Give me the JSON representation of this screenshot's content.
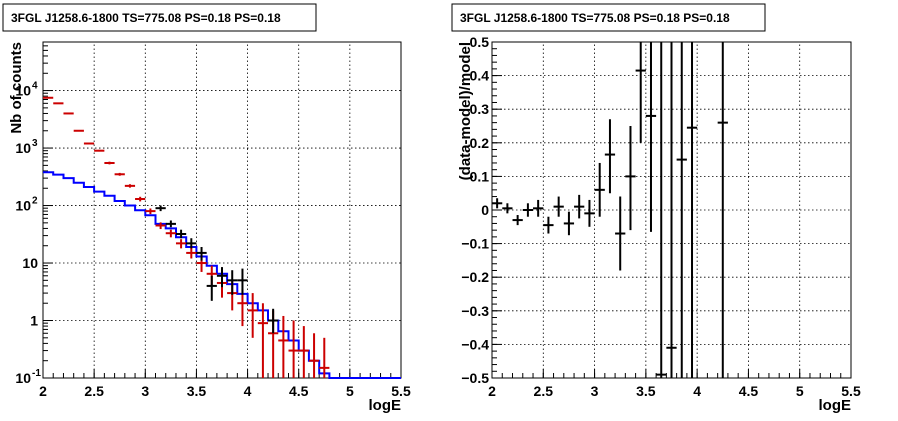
{
  "chart_data": [
    {
      "type": "line",
      "title": "3FGL J1258.6-1800 TS=775.08 PS=0.18 PS=0.18",
      "xlabel": "logE",
      "ylabel": "Nb of counts",
      "xlim": [
        2,
        5.5
      ],
      "ylim": [
        0.1,
        70000
      ],
      "yscale": "log",
      "grid": true,
      "xticks": [
        "2",
        "2.5",
        "3",
        "3.5",
        "4",
        "4.5",
        "5",
        "5.5"
      ],
      "yticks": [
        {
          "value": 0.1,
          "label": "10",
          "sup": "-1"
        },
        {
          "value": 1,
          "label": "1",
          "sup": ""
        },
        {
          "value": 10,
          "label": "10",
          "sup": ""
        },
        {
          "value": 100,
          "label": "10",
          "sup": "2"
        },
        {
          "value": 1000,
          "label": "10",
          "sup": "3"
        },
        {
          "value": 10000,
          "label": "10",
          "sup": "4"
        }
      ],
      "series": [
        {
          "kind": "model-histogram",
          "color": "#0000ff",
          "bin_width": 0.1,
          "x": [
            2.05,
            2.15,
            2.25,
            2.35,
            2.45,
            2.55,
            2.65,
            2.75,
            2.85,
            2.95,
            3.05,
            3.15,
            3.25,
            3.35,
            3.45,
            3.55,
            3.65,
            3.75,
            3.85,
            3.95,
            4.05,
            4.15,
            4.25,
            4.35,
            4.45,
            4.55,
            4.65,
            4.75,
            4.85,
            4.95,
            5.05,
            5.15,
            5.25,
            5.35,
            5.45
          ],
          "y": [
            380,
            345,
            300,
            250,
            210,
            175,
            148,
            120,
            100,
            83,
            68,
            48,
            40,
            28,
            19,
            13,
            9,
            6.5,
            4.3,
            2.9,
            2.0,
            1.5,
            1.0,
            0.65,
            0.45,
            0.3,
            0.2,
            0.12,
            0.1,
            0.1,
            0.1,
            0.1,
            0.1,
            0.1,
            0.1
          ]
        },
        {
          "kind": "model-points",
          "color": "#cc0000",
          "x": [
            2.05,
            2.15,
            2.25,
            2.35,
            2.45,
            2.55,
            2.65,
            2.75,
            2.85,
            2.95,
            3.05,
            3.15,
            3.25,
            3.35,
            3.45,
            3.55,
            3.65,
            3.75,
            3.85,
            3.95,
            4.05,
            4.15,
            4.25,
            4.35,
            4.45,
            4.55,
            4.65,
            4.75
          ],
          "y": [
            7500,
            6000,
            4000,
            2000,
            1200,
            900,
            550,
            350,
            220,
            130,
            80,
            45,
            33,
            22,
            15,
            10,
            6.5,
            4.5,
            3.0,
            2.0,
            1.5,
            0.9,
            0.6,
            0.45,
            0.3,
            0.3,
            0.2,
            0.15
          ],
          "ylo": [
            7300,
            5850,
            3900,
            1950,
            1160,
            870,
            520,
            330,
            205,
            118,
            71,
            39,
            28,
            18,
            12,
            7,
            4,
            2.5,
            1.5,
            0.8,
            0.5,
            0.1,
            0.1,
            0.1,
            0.1,
            0.1,
            0.1,
            0.1
          ],
          "yhi": [
            7700,
            6150,
            4100,
            2050,
            1240,
            930,
            580,
            370,
            235,
            142,
            89,
            51,
            38,
            26,
            19,
            13,
            9,
            7,
            5,
            3.5,
            3,
            2,
            1.5,
            1.2,
            1,
            0.8,
            0.6,
            0.5
          ]
        },
        {
          "kind": "data",
          "color": "#000000",
          "x": [
            3.15,
            3.25,
            3.35,
            3.45,
            3.55,
            3.65,
            3.75,
            3.85,
            3.95,
            4.25
          ],
          "y": [
            90,
            48,
            32,
            22,
            15,
            4,
            6,
            5,
            5,
            1.0
          ],
          "ylo": [
            80,
            42,
            27,
            18,
            11,
            2.2,
            3.8,
            2.8,
            2.8,
            0.6
          ],
          "yhi": [
            100,
            55,
            38,
            27,
            19,
            6,
            8.5,
            7.5,
            8,
            1.6
          ]
        }
      ]
    },
    {
      "type": "scatter",
      "title": "3FGL J1258.6-1800 TS=775.08 PS=0.18 PS=0.18",
      "xlabel": "logE",
      "ylabel": "(data-model)/model",
      "xlim": [
        2,
        5.5
      ],
      "ylim": [
        -0.5,
        0.5
      ],
      "grid": true,
      "xticks": [
        "2",
        "2.5",
        "3",
        "3.5",
        "4",
        "4.5",
        "5",
        "5.5"
      ],
      "yticks": [
        "−0.5",
        "−0.4",
        "−0.3",
        "−0.2",
        "−0.1",
        "0",
        "0.1",
        "0.2",
        "0.3",
        "0.4",
        "0.5"
      ],
      "series": [
        {
          "kind": "residuals",
          "color": "#000000",
          "x": [
            2.05,
            2.15,
            2.25,
            2.35,
            2.45,
            2.55,
            2.65,
            2.75,
            2.85,
            2.95,
            3.05,
            3.15,
            3.25,
            3.35,
            3.45,
            3.55,
            3.65,
            3.75,
            3.85,
            3.95,
            4.25
          ],
          "y": [
            0.02,
            0.005,
            -0.03,
            0.0,
            0.005,
            -0.045,
            0.01,
            -0.04,
            0.01,
            -0.01,
            0.06,
            0.165,
            -0.07,
            0.1,
            0.415,
            0.28,
            -0.49,
            -0.41,
            0.15,
            0.245,
            0.26
          ],
          "ylo": [
            0.005,
            -0.01,
            -0.045,
            -0.02,
            -0.02,
            -0.07,
            -0.02,
            -0.075,
            -0.025,
            -0.05,
            -0.02,
            0.05,
            -0.18,
            -0.06,
            0.2,
            -0.065,
            -0.5,
            -0.5,
            -0.5,
            -0.5,
            -0.5
          ],
          "yhi": [
            0.035,
            0.02,
            -0.015,
            0.02,
            0.03,
            -0.02,
            0.04,
            -0.005,
            0.045,
            0.03,
            0.14,
            0.27,
            0.04,
            0.25,
            0.5,
            0.5,
            0.5,
            0.5,
            0.5,
            0.5,
            0.5
          ]
        }
      ]
    }
  ]
}
